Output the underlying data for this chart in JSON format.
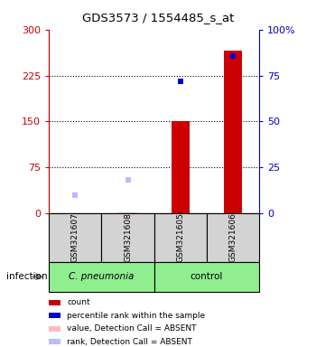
{
  "title": "GDS3573 / 1554485_s_at",
  "samples": [
    "GSM321607",
    "GSM321608",
    "GSM321605",
    "GSM321606"
  ],
  "left_yticks": [
    0,
    75,
    150,
    225,
    300
  ],
  "right_ytick_labels": [
    "0",
    "25",
    "50",
    "75",
    "100%"
  ],
  "counts": [
    null,
    2,
    150,
    265
  ],
  "percentile_ranks_left_scale": [
    null,
    null,
    215,
    257
  ],
  "absent_values": [
    null,
    2,
    null,
    null
  ],
  "absent_ranks_left_scale": [
    30,
    55,
    null,
    null
  ],
  "group_label": "infection",
  "group1_label": "C. pneumonia",
  "group2_label": "control",
  "legend_colors": [
    "#cc0000",
    "#0000cc",
    "#ffbbbb",
    "#bbbbff"
  ],
  "legend_labels": [
    "count",
    "percentile rank within the sample",
    "value, Detection Call = ABSENT",
    "rank, Detection Call = ABSENT"
  ],
  "bg_color": "#d3d3d3",
  "green_color": "#90ee90",
  "red_color": "#cc0000",
  "blue_color": "#0000cc",
  "pink_color": "#ffbbbb",
  "lblue_color": "#bbbbff",
  "bar_width": 0.35
}
